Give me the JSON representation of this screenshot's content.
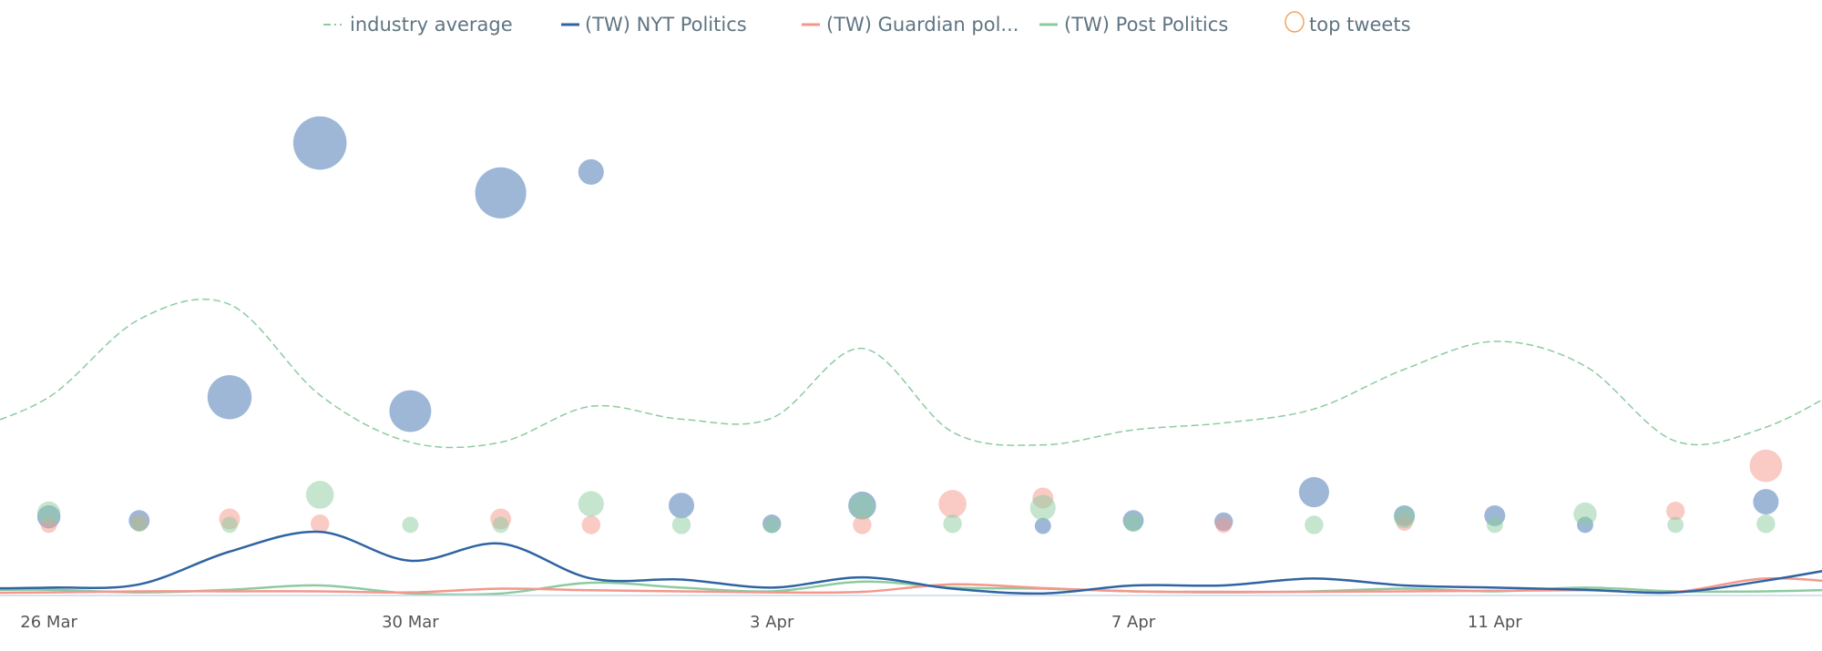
{
  "chart_data": {
    "type": "line",
    "title": "",
    "xlabel": "",
    "ylabel": "",
    "grid": false,
    "legend_placement": "top",
    "x_tick_labels": [
      "26 Mar",
      "30 Mar",
      "3 Apr",
      "7 Apr",
      "11 Apr"
    ],
    "x": [
      "25 Mar",
      "26 Mar",
      "27 Mar",
      "28 Mar",
      "29 Mar",
      "30 Mar",
      "31 Mar",
      "1 Apr",
      "2 Apr",
      "3 Apr",
      "4 Apr",
      "5 Apr",
      "6 Apr",
      "7 Apr",
      "8 Apr",
      "9 Apr",
      "10 Apr",
      "11 Apr",
      "12 Apr",
      "13 Apr",
      "14 Apr",
      "15 Apr"
    ],
    "ylim": [
      0,
      100
    ],
    "series": [
      {
        "name": "industry average",
        "color": "#8ccba0",
        "dash": true,
        "values": [
          30,
          36.8,
          51.3,
          54.1,
          37.2,
          28.4,
          28.4,
          35.1,
          32.7,
          32.9,
          45.9,
          30.3,
          27.9,
          30.7,
          32.0,
          34.6,
          42.0,
          47.2,
          42.6,
          28.6,
          31.2,
          40
        ]
      },
      {
        "name": "(TW) NYT Politics",
        "color": "#2f64a3",
        "values": [
          1.1,
          1.3,
          1.9,
          8.0,
          11.7,
          6.3,
          9.5,
          3.0,
          2.8,
          1.3,
          3.2,
          1.1,
          0.2,
          1.7,
          1.7,
          3.0,
          1.7,
          1.3,
          0.9,
          0.4,
          2.6,
          5.5
        ]
      },
      {
        "name": "(TW) Guardian pol...",
        "color": "#f4978a",
        "values": [
          0.3,
          0.4,
          0.6,
          0.6,
          0.6,
          0.4,
          1.1,
          0.8,
          0.6,
          0.4,
          0.5,
          1.9,
          1.2,
          0.6,
          0.5,
          0.5,
          0.6,
          0.7,
          0.8,
          0.5,
          3.0,
          2.0
        ]
      },
      {
        "name": "(TW) Post Politics",
        "color": "#8ccba0",
        "values": [
          0.8,
          0.9,
          0.4,
          0.9,
          1.7,
          0.2,
          0.2,
          2.2,
          1.3,
          0.6,
          2.4,
          1.3,
          1.1,
          0.6,
          0.4,
          0.6,
          1.1,
          0.6,
          1.3,
          0.6,
          0.6,
          1.0
        ]
      }
    ],
    "top_tweets": {
      "name": "top tweets",
      "legend_color": "#f2a35e",
      "groups": [
        {
          "series": "(TW) NYT Politics",
          "color": "#3d6fae",
          "points": [
            [
              "26 Mar",
              14.5,
              10
            ],
            [
              "27 Mar",
              13.8,
              9
            ],
            [
              "28 Mar",
              36.8,
              19
            ],
            [
              "29 Mar",
              84.2,
              23
            ],
            [
              "30 Mar",
              34.2,
              18
            ],
            [
              "31 Mar",
              74.9,
              22
            ],
            [
              "1 Apr",
              78.8,
              11
            ],
            [
              "2 Apr",
              16.6,
              11
            ],
            [
              "3 Apr",
              13.2,
              8
            ],
            [
              "4 Apr",
              16.6,
              12
            ],
            [
              "6 Apr",
              12.8,
              7
            ],
            [
              "7 Apr",
              13.8,
              9
            ],
            [
              "8 Apr",
              13.6,
              8
            ],
            [
              "9 Apr",
              19.1,
              13
            ],
            [
              "10 Apr",
              14.7,
              9
            ],
            [
              "11 Apr",
              14.7,
              9
            ],
            [
              "12 Apr",
              13.0,
              7
            ],
            [
              "14 Apr",
              17.3,
              11
            ]
          ]
        },
        {
          "series": "(TW) Guardian pol...",
          "color": "#f4978a",
          "points": [
            [
              "26 Mar",
              13.0,
              7
            ],
            [
              "27 Mar",
              13.4,
              7
            ],
            [
              "28 Mar",
              14.1,
              9
            ],
            [
              "29 Mar",
              13.2,
              8
            ],
            [
              "31 Mar",
              14.1,
              9
            ],
            [
              "1 Apr",
              13.0,
              8
            ],
            [
              "4 Apr",
              13.0,
              8
            ],
            [
              "5 Apr",
              16.9,
              12
            ],
            [
              "6 Apr",
              18.0,
              9
            ],
            [
              "8 Apr",
              13.0,
              7
            ],
            [
              "10 Apr",
              13.4,
              7
            ],
            [
              "13 Apr",
              15.6,
              8
            ],
            [
              "14 Apr",
              24.0,
              14
            ]
          ]
        },
        {
          "series": "(TW) Post Politics",
          "color": "#8ccba0",
          "points": [
            [
              "26 Mar",
              15.2,
              10
            ],
            [
              "27 Mar",
              13.2,
              7
            ],
            [
              "28 Mar",
              13.0,
              7
            ],
            [
              "29 Mar",
              18.6,
              12
            ],
            [
              "30 Mar",
              13.0,
              7
            ],
            [
              "31 Mar",
              13.0,
              7
            ],
            [
              "1 Apr",
              16.9,
              11
            ],
            [
              "2 Apr",
              13.0,
              8
            ],
            [
              "3 Apr",
              13.0,
              7
            ],
            [
              "4 Apr",
              16.4,
              11
            ],
            [
              "5 Apr",
              13.2,
              8
            ],
            [
              "6 Apr",
              16.2,
              11
            ],
            [
              "7 Apr",
              13.4,
              8
            ],
            [
              "9 Apr",
              13.0,
              8
            ],
            [
              "10 Apr",
              14.3,
              9
            ],
            [
              "11 Apr",
              13.0,
              7
            ],
            [
              "12 Apr",
              15.0,
              10
            ],
            [
              "13 Apr",
              13.0,
              7
            ],
            [
              "14 Apr",
              13.2,
              8
            ]
          ]
        }
      ]
    }
  }
}
